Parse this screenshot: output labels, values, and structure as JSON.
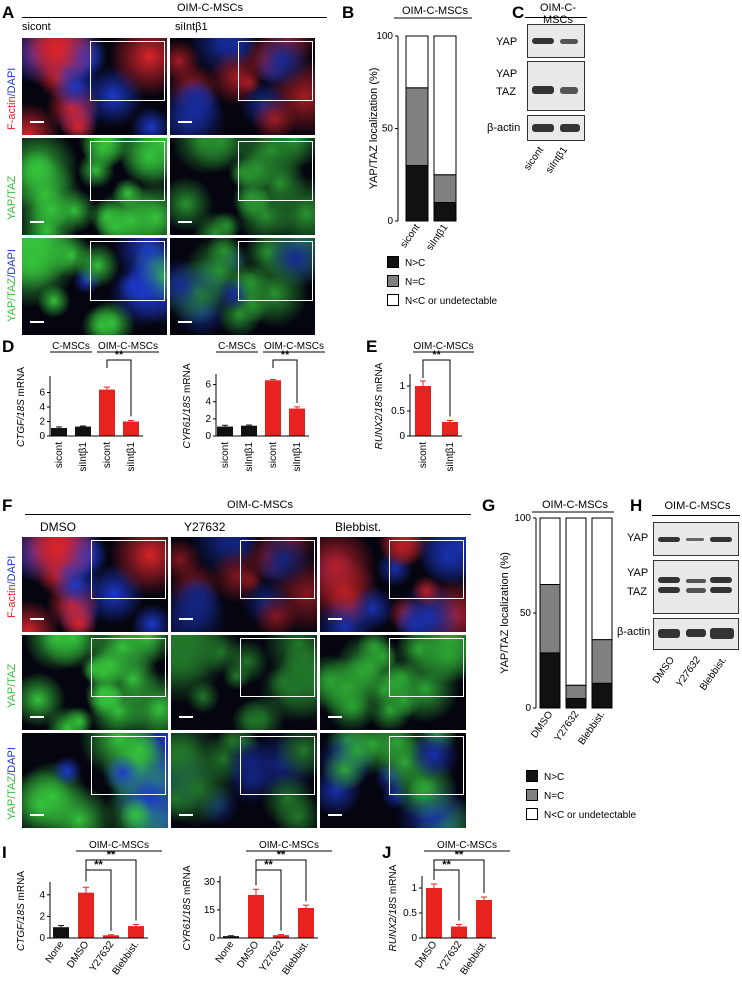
{
  "panel_letters": {
    "a": "A",
    "b": "B",
    "c": "C",
    "d": "D",
    "e": "E",
    "f": "F",
    "g": "G",
    "h": "H",
    "i": "I",
    "j": "J"
  },
  "group": "OIM-C-MSCs",
  "control_group": "C-MSCs",
  "a": {
    "col1": "sicont",
    "col2": "siIntβ1",
    "rows": [
      {
        "p1": "F-actin",
        "p2": "/DAPI",
        "c1": "#e02020",
        "c2": "#2050e0"
      },
      {
        "p1": "YAP/TAZ",
        "p2": "",
        "c1": "#40b040",
        "c2": "#2050e0"
      },
      {
        "p1": "YAP/TAZ",
        "p2": "/DAPI",
        "c1": "#40b040",
        "c2": "#2050e0"
      }
    ]
  },
  "f": {
    "cols": [
      "DMSO",
      "Y27632",
      "Blebbist."
    ]
  },
  "colors": {
    "actin": "#d8242b",
    "dapi": "#1d38c8",
    "yap": "#35c23b",
    "bar_red": "#e8221f",
    "bar_black": "#111111",
    "bar_grey": "#808080"
  },
  "legend": {
    "nc": "N>C",
    "eq": "N=C",
    "cn": "N<C or undetectable"
  },
  "western": {
    "yap": "YAP",
    "taz": "TAZ",
    "actin": "β-actin"
  },
  "chart_data": [
    {
      "id": "B",
      "type": "bar",
      "stacked": true,
      "title": "OIM-C-MSCs",
      "ylabel": "YAP/TAZ localization (%)",
      "ylim": [
        0,
        100
      ],
      "yticks": [
        0,
        50,
        100
      ],
      "categories": [
        "sicont",
        "siIntβ1"
      ],
      "series": [
        {
          "name": "N>C",
          "values": [
            30,
            10
          ]
        },
        {
          "name": "N=C",
          "values": [
            42,
            15
          ]
        },
        {
          "name": "N<C or undetectable",
          "values": [
            28,
            75
          ]
        }
      ]
    },
    {
      "id": "D1",
      "type": "bar",
      "groups": [
        "C-MSCs",
        "OIM-C-MSCs"
      ],
      "ylabel": "CTGF/18S  mRNA",
      "ylim": [
        0,
        8
      ],
      "yticks": [
        0,
        2,
        4,
        6
      ],
      "categories": [
        "sicont",
        "siIntβ1",
        "sicont",
        "siIntβ1"
      ],
      "values": [
        1.1,
        1.3,
        6.4,
        2.0
      ],
      "errors": [
        0.15,
        0.08,
        0.35,
        0.15
      ],
      "sig": "**"
    },
    {
      "id": "D2",
      "type": "bar",
      "groups": [
        "C-MSCs",
        "OIM-C-MSCs"
      ],
      "ylabel": "CYR61/18S  mRNA",
      "ylim": [
        0,
        7
      ],
      "yticks": [
        0,
        2,
        4,
        6
      ],
      "categories": [
        "sicont",
        "siIntβ1",
        "sicont",
        "siIntβ1"
      ],
      "values": [
        1.1,
        1.2,
        6.5,
        3.2
      ],
      "errors": [
        0.15,
        0.08,
        0.1,
        0.2
      ],
      "sig": "**"
    },
    {
      "id": "E",
      "type": "bar",
      "groups": [
        "OIM-C-MSCs"
      ],
      "ylabel": "RUNX2/18S  mRNA",
      "ylim": [
        0,
        1.2
      ],
      "yticks": [
        0,
        0.5,
        1.0
      ],
      "categories": [
        "sicont",
        "siIntβ1"
      ],
      "values": [
        1.0,
        0.28
      ],
      "errors": [
        0.1,
        0.03
      ],
      "sig": "**"
    },
    {
      "id": "G",
      "type": "bar",
      "stacked": true,
      "title": "OIM-C-MSCs",
      "ylabel": "YAP/TAZ localization (%)",
      "ylim": [
        0,
        100
      ],
      "yticks": [
        0,
        50,
        100
      ],
      "categories": [
        "DMSO",
        "Y27632",
        "Blebbist."
      ],
      "series": [
        {
          "name": "N>C",
          "values": [
            29,
            5,
            13
          ]
        },
        {
          "name": "N=C",
          "values": [
            36,
            7,
            23
          ]
        },
        {
          "name": "N<C or undetectable",
          "values": [
            35,
            88,
            64
          ]
        }
      ]
    },
    {
      "id": "I1",
      "type": "bar",
      "groups": [
        "OIM-C-MSCs"
      ],
      "ylabel": "CTGF/18S  mRNA",
      "ylim": [
        0,
        5
      ],
      "yticks": [
        0,
        2,
        4
      ],
      "categories": [
        "None",
        "DMSO",
        "Y27632",
        "Blebbist."
      ],
      "values": [
        1.0,
        4.2,
        0.25,
        1.1
      ],
      "errors": [
        0.15,
        0.5,
        0.05,
        0.15
      ],
      "sig": "**"
    },
    {
      "id": "I2",
      "type": "bar",
      "groups": [
        "OIM-C-MSCs"
      ],
      "ylabel": "CYR61/18S  mRNA",
      "ylim": [
        0,
        32
      ],
      "yticks": [
        0,
        15,
        30
      ],
      "categories": [
        "None",
        "DMSO",
        "Y27632",
        "Blebbist."
      ],
      "values": [
        1.0,
        23.0,
        1.5,
        16.0
      ],
      "errors": [
        0.2,
        3.0,
        0.4,
        1.5
      ],
      "sig": "**"
    },
    {
      "id": "J",
      "type": "bar",
      "groups": [
        "OIM-C-MSCs"
      ],
      "ylabel": "RUNX2/18S  mRNA",
      "ylim": [
        0,
        1.2
      ],
      "yticks": [
        0,
        0.5,
        1.0
      ],
      "categories": [
        "DMSO",
        "Y27632",
        "Blebbist."
      ],
      "values": [
        1.0,
        0.23,
        0.76
      ],
      "errors": [
        0.08,
        0.04,
        0.06
      ],
      "sig": "**"
    }
  ]
}
